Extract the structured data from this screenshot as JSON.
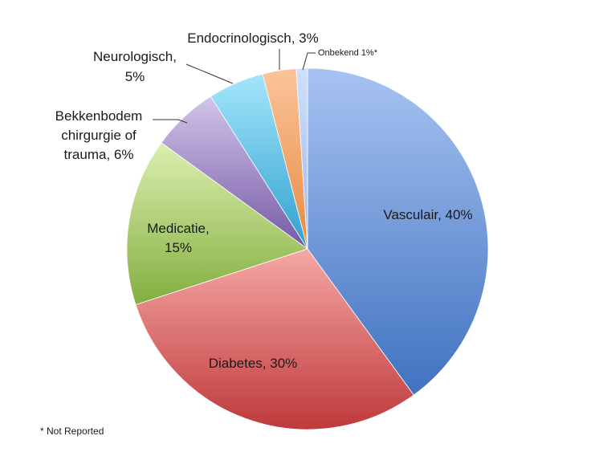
{
  "chart_data": {
    "type": "pie",
    "title": "",
    "start_angle_deg": 0,
    "direction": "clockwise",
    "slices": [
      {
        "label_lines": [
          "Vasculair, 40%"
        ],
        "value": 40,
        "color_light": "#a8c3f2",
        "color_dark": "#3f72c0"
      },
      {
        "label_lines": [
          "Diabetes, 30%"
        ],
        "value": 30,
        "color_light": "#f4a8a6",
        "color_dark": "#c0393a"
      },
      {
        "label_lines": [
          "Medicatie,",
          "15%"
        ],
        "value": 15,
        "color_light": "#dcefb0",
        "color_dark": "#82ae3e"
      },
      {
        "label_lines": [
          "Bekkenbodem",
          "chirgurgie of",
          "trauma, 6%"
        ],
        "value": 6,
        "color_light": "#d2c4ea",
        "color_dark": "#7559a4"
      },
      {
        "label_lines": [
          "Neurologisch,",
          "5%"
        ],
        "value": 5,
        "color_light": "#a4e6fb",
        "color_dark": "#2fa0cf"
      },
      {
        "label_lines": [
          "Endocrinologisch, 3%"
        ],
        "value": 3,
        "color_light": "#fbc49b",
        "color_dark": "#e78a40"
      },
      {
        "label_lines": [
          "Onbekend 1%*"
        ],
        "value": 1,
        "color_light": "#cfe0fa",
        "color_dark": "#9ab8ea"
      }
    ]
  },
  "footnote": "* Not Reported"
}
